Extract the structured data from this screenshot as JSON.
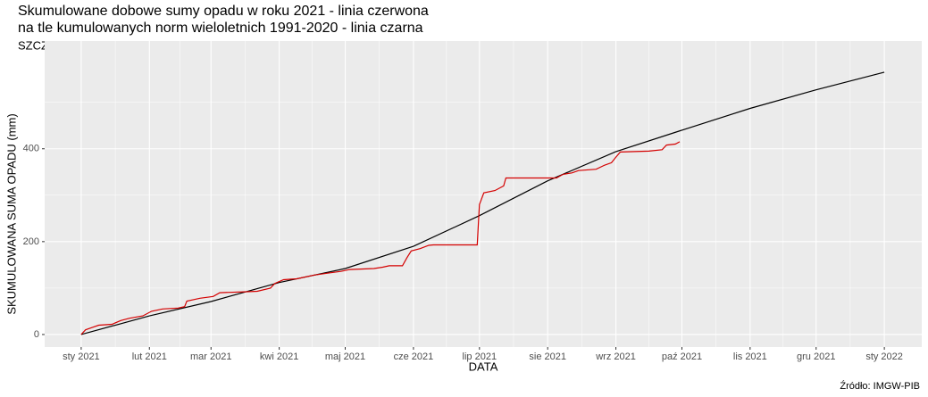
{
  "chart_data": {
    "type": "line",
    "title": "Skumulowane dobowe sumy opadu w roku 2021 - linia czerwona",
    "title2": "na tle kumulowanych norm wieloletnich 1991-2020 - linia czarna",
    "subtitle": "SZCZECIN",
    "x_label": "DATA",
    "y_label": "SKUMULOWANA SUMA OPADU (mm)",
    "caption": "Źródło: IMGW-PIB",
    "xlim": [
      -16.6,
      382
    ],
    "ylim": [
      -27,
      632
    ],
    "xticks": [
      {
        "value": 0,
        "label": "sty 2021"
      },
      {
        "value": 31,
        "label": "lut 2021"
      },
      {
        "value": 59,
        "label": "mar 2021"
      },
      {
        "value": 90,
        "label": "kwi 2021"
      },
      {
        "value": 120,
        "label": "maj 2021"
      },
      {
        "value": 151,
        "label": "cze 2021"
      },
      {
        "value": 181,
        "label": "lip 2021"
      },
      {
        "value": 212,
        "label": "sie 2021"
      },
      {
        "value": 243,
        "label": "wrz 2021"
      },
      {
        "value": 273,
        "label": "paź 2021"
      },
      {
        "value": 304,
        "label": "lis 2021"
      },
      {
        "value": 334,
        "label": "gru 2021"
      },
      {
        "value": 365,
        "label": "sty 2022"
      }
    ],
    "yticks": [
      0,
      200,
      400
    ],
    "grid": true,
    "series": [
      {
        "color": "#000000",
        "x": [
          0,
          31,
          59,
          90,
          120,
          151,
          181,
          212,
          243,
          273,
          304,
          334,
          365
        ],
        "values": [
          0,
          40,
          71,
          112,
          142,
          190,
          256,
          331,
          394,
          440,
          487,
          527,
          565
        ]
      },
      {
        "color": "#d40000",
        "x": [
          0,
          2,
          5,
          8,
          14,
          18,
          22,
          28,
          32,
          37,
          44,
          47,
          48,
          54,
          60,
          63,
          74,
          80,
          86,
          88,
          92,
          98,
          106,
          112,
          118,
          122,
          133,
          137,
          140,
          146,
          148,
          150,
          154,
          158,
          160,
          180,
          181,
          183,
          188,
          192,
          193,
          216,
          219,
          223,
          226,
          234,
          238,
          241,
          243,
          245,
          258,
          264,
          266,
          270,
          272
        ],
        "values": [
          0,
          10,
          15,
          20,
          22,
          30,
          35,
          40,
          50,
          55,
          57,
          60,
          72,
          78,
          82,
          90,
          92,
          93,
          100,
          110,
          118,
          120,
          128,
          132,
          136,
          140,
          142,
          145,
          148,
          148,
          165,
          180,
          185,
          192,
          193,
          193,
          280,
          305,
          310,
          320,
          337,
          337,
          345,
          348,
          353,
          356,
          365,
          370,
          382,
          393,
          395,
          398,
          408,
          410,
          415
        ]
      }
    ]
  }
}
